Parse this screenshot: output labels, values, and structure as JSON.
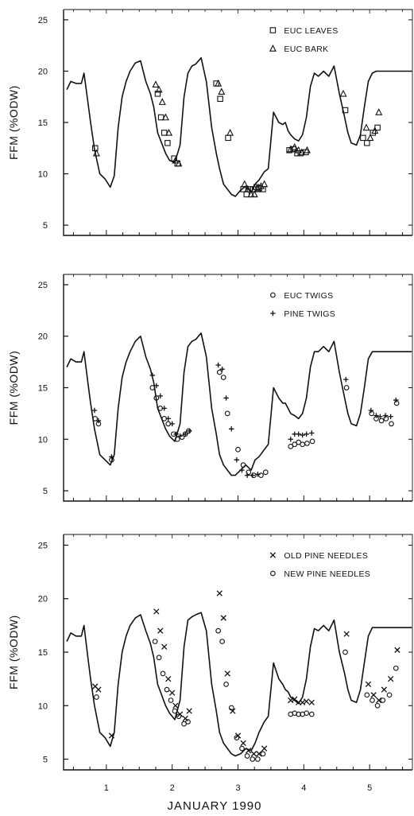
{
  "figure": {
    "xlabel": "JANUARY 1990"
  },
  "chart_data": [
    {
      "type": "line",
      "ylabel": "FFM (%ODW)",
      "ylim": [
        4,
        26
      ],
      "yticks": [
        5,
        10,
        15,
        20,
        25
      ],
      "xlim": [
        0.35,
        5.65
      ],
      "xticks": [
        1,
        2,
        3,
        4,
        5
      ],
      "xtick_labels": [],
      "legend_position": "top-right",
      "line": {
        "x": [
          0.4,
          0.46,
          0.54,
          0.62,
          0.66,
          0.72,
          0.76,
          0.82,
          0.9,
          0.98,
          1.06,
          1.12,
          1.18,
          1.24,
          1.3,
          1.36,
          1.44,
          1.52,
          1.6,
          1.67,
          1.72,
          1.78,
          1.84,
          1.9,
          1.96,
          2.04,
          2.12,
          2.18,
          2.24,
          2.3,
          2.36,
          2.44,
          2.52,
          2.6,
          2.67,
          2.72,
          2.78,
          2.84,
          2.9,
          2.96,
          3.04,
          3.12,
          3.2,
          3.26,
          3.32,
          3.4,
          3.46,
          3.54,
          3.62,
          3.68,
          3.72,
          3.76,
          3.8,
          3.86,
          3.92,
          3.98,
          4.04,
          4.1,
          4.16,
          4.22,
          4.3,
          4.38,
          4.46,
          4.54,
          4.62,
          4.67,
          4.72,
          4.8,
          4.86,
          4.92,
          4.98,
          5.04,
          5.1,
          5.16,
          5.2,
          5.24,
          5.3,
          5.36,
          5.42,
          5.5,
          5.58,
          5.64
        ],
        "y": [
          18.2,
          19,
          18.8,
          18.8,
          19.8,
          17,
          15,
          12.4,
          10,
          9.5,
          8.7,
          9.8,
          14.5,
          17.5,
          19,
          20,
          20.8,
          21,
          19,
          17.8,
          16.5,
          14,
          13,
          12,
          11.3,
          11.1,
          12.8,
          17.5,
          19.8,
          20.5,
          20.7,
          21.3,
          19,
          14.5,
          12,
          10.5,
          9,
          8.5,
          8,
          7.8,
          8.4,
          8.8,
          8.2,
          9,
          9.4,
          10.2,
          10.5,
          16,
          15,
          14.8,
          15,
          14.2,
          13.8,
          13.4,
          13.2,
          13.8,
          15.5,
          18.5,
          19.8,
          19.5,
          20,
          19.5,
          20.5,
          17.8,
          15.5,
          14,
          13,
          12.8,
          13.8,
          16.5,
          19,
          19.8,
          20,
          20,
          20,
          20,
          20,
          20,
          20,
          20,
          20,
          20
        ]
      },
      "series": [
        {
          "name": "EUC LEAVES",
          "marker": "square",
          "x": [
            0.83,
            1.78,
            1.83,
            1.88,
            1.93,
            2.03,
            2.08,
            2.67,
            2.73,
            2.85,
            3.08,
            3.13,
            3.18,
            3.23,
            3.28,
            3.32,
            3.38,
            3.78,
            3.84,
            3.9,
            3.95,
            4.03,
            4.63,
            4.9,
            4.96,
            5.05,
            5.12
          ],
          "y": [
            12.5,
            17.8,
            15.5,
            14,
            13,
            11.5,
            11,
            18.8,
            17.3,
            13.5,
            8.5,
            8,
            8.5,
            8.5,
            8.7,
            8.6,
            8.5,
            12.3,
            12.4,
            12,
            12,
            12.1,
            16.2,
            13.5,
            13,
            14,
            14.5
          ]
        },
        {
          "name": "EUC BARK",
          "marker": "triangle",
          "x": [
            0.85,
            1.75,
            1.8,
            1.85,
            1.9,
            1.95,
            2.05,
            2.1,
            2.7,
            2.75,
            2.88,
            3.1,
            3.15,
            3.2,
            3.25,
            3.3,
            3.35,
            3.4,
            3.8,
            3.86,
            3.92,
            3.97,
            4.05,
            4.6,
            4.95,
            5.01,
            5.08,
            5.14
          ],
          "y": [
            12,
            18.7,
            18.2,
            17,
            15.5,
            14,
            11.3,
            11,
            18.8,
            18,
            14,
            9,
            8.5,
            8,
            8,
            8.5,
            8.8,
            9,
            12.4,
            12.6,
            12.3,
            12.1,
            12.3,
            17.8,
            14.5,
            13.5,
            14.2,
            16
          ]
        }
      ]
    },
    {
      "type": "line",
      "ylabel": "FFM (%ODW)",
      "ylim": [
        4,
        26
      ],
      "yticks": [
        5,
        10,
        15,
        20,
        25
      ],
      "xlim": [
        0.35,
        5.65
      ],
      "xticks": [
        1,
        2,
        3,
        4,
        5
      ],
      "xtick_labels": [],
      "legend_position": "top-right",
      "line": {
        "x": [
          0.4,
          0.46,
          0.54,
          0.62,
          0.66,
          0.72,
          0.76,
          0.82,
          0.9,
          0.98,
          1.06,
          1.12,
          1.18,
          1.24,
          1.3,
          1.36,
          1.44,
          1.52,
          1.6,
          1.67,
          1.72,
          1.78,
          1.84,
          1.9,
          1.96,
          2.04,
          2.12,
          2.18,
          2.24,
          2.3,
          2.36,
          2.44,
          2.52,
          2.6,
          2.67,
          2.72,
          2.78,
          2.84,
          2.9,
          2.96,
          3.04,
          3.12,
          3.2,
          3.26,
          3.32,
          3.4,
          3.46,
          3.54,
          3.62,
          3.68,
          3.72,
          3.76,
          3.8,
          3.86,
          3.92,
          3.98,
          4.04,
          4.1,
          4.16,
          4.22,
          4.3,
          4.38,
          4.46,
          4.54,
          4.62,
          4.67,
          4.72,
          4.8,
          4.86,
          4.92,
          4.98,
          5.04,
          5.1,
          5.16,
          5.2,
          5.24,
          5.3,
          5.36,
          5.42,
          5.5,
          5.58,
          5.64
        ],
        "y": [
          17,
          17.8,
          17.5,
          17.5,
          18.5,
          15.5,
          13.5,
          11,
          8.5,
          8,
          7.5,
          8.5,
          13,
          16,
          17.5,
          18.5,
          19.5,
          20,
          18,
          16.8,
          15.5,
          13,
          12,
          11,
          10.3,
          9.8,
          11.5,
          16.5,
          19,
          19.5,
          19.7,
          20.3,
          18,
          13,
          10.5,
          8.5,
          7.5,
          7,
          6.5,
          6.5,
          7,
          7.5,
          7,
          8,
          8.3,
          9,
          9.5,
          15,
          14,
          13.5,
          13.5,
          13,
          12.5,
          12.3,
          12,
          12.5,
          14,
          17,
          18.5,
          18.5,
          19,
          18.5,
          19.5,
          16.5,
          14,
          12.5,
          11.5,
          11.3,
          12.5,
          15,
          17.8,
          18.5,
          18.5,
          18.5,
          18.5,
          18.5,
          18.5,
          18.5,
          18.5,
          18.5,
          18.5,
          18.5
        ]
      },
      "series": [
        {
          "name": "EUC TWIGS",
          "marker": "circle",
          "x": [
            0.83,
            0.88,
            1.08,
            1.7,
            1.76,
            1.82,
            1.88,
            1.94,
            2.02,
            2.08,
            2.15,
            2.2,
            2.25,
            2.72,
            2.78,
            2.84,
            3,
            3.08,
            3.16,
            3.24,
            3.35,
            3.42,
            3.8,
            3.86,
            3.92,
            3.98,
            4.05,
            4.13,
            4.65,
            5.03,
            5.1,
            5.18,
            5.25,
            5.33,
            5.41
          ],
          "y": [
            12,
            11.5,
            8,
            15,
            14,
            13,
            12,
            11.5,
            10.5,
            10,
            10.2,
            10.5,
            10.8,
            16.5,
            16,
            12.5,
            9,
            7.5,
            6.8,
            6.5,
            6.5,
            6.8,
            9.3,
            9.5,
            9.7,
            9.5,
            9.6,
            9.8,
            15,
            12.5,
            12,
            11.8,
            12,
            11.5,
            13.5
          ]
        },
        {
          "name": "PINE TWIGS",
          "marker": "plus",
          "x": [
            0.82,
            0.88,
            1.08,
            1.7,
            1.76,
            1.82,
            1.88,
            1.94,
            2,
            2.06,
            2.12,
            2.2,
            2.26,
            2.7,
            2.76,
            2.82,
            2.9,
            2.98,
            3.06,
            3.14,
            3.22,
            3.3,
            3.8,
            3.86,
            3.92,
            3.98,
            4.04,
            4.12,
            4.64,
            5.02,
            5.1,
            5.16,
            5.24,
            5.32,
            5.4
          ],
          "y": [
            12.8,
            11.8,
            8.3,
            16.2,
            15.2,
            14.2,
            13,
            12,
            11.5,
            10.5,
            10.3,
            10.5,
            10.8,
            17.2,
            16.8,
            14,
            11,
            8,
            7,
            6.5,
            6.5,
            6.6,
            10,
            10.5,
            10.5,
            10.4,
            10.5,
            10.6,
            15.8,
            12.8,
            12.3,
            12.2,
            12.3,
            12.2,
            13.8
          ]
        }
      ]
    },
    {
      "type": "line",
      "ylabel": "FFM (%ODW)",
      "ylim": [
        4,
        26
      ],
      "yticks": [
        5,
        10,
        15,
        20,
        25
      ],
      "xlim": [
        0.35,
        5.65
      ],
      "xticks": [
        1,
        2,
        3,
        4,
        5
      ],
      "xtick_labels": [
        "1",
        "2",
        "3",
        "4",
        "5"
      ],
      "legend_position": "top-right",
      "line": {
        "x": [
          0.4,
          0.46,
          0.54,
          0.62,
          0.66,
          0.72,
          0.76,
          0.82,
          0.9,
          0.98,
          1.06,
          1.12,
          1.18,
          1.24,
          1.3,
          1.36,
          1.44,
          1.52,
          1.6,
          1.67,
          1.72,
          1.78,
          1.84,
          1.9,
          1.96,
          2.04,
          2.12,
          2.18,
          2.24,
          2.3,
          2.36,
          2.44,
          2.52,
          2.6,
          2.67,
          2.72,
          2.78,
          2.84,
          2.9,
          2.96,
          3.04,
          3.12,
          3.2,
          3.26,
          3.32,
          3.4,
          3.46,
          3.54,
          3.62,
          3.68,
          3.72,
          3.76,
          3.8,
          3.86,
          3.92,
          3.98,
          4.04,
          4.1,
          4.16,
          4.22,
          4.3,
          4.38,
          4.46,
          4.54,
          4.62,
          4.67,
          4.72,
          4.8,
          4.86,
          4.92,
          4.98,
          5.04,
          5.1,
          5.16,
          5.2,
          5.24,
          5.3,
          5.36,
          5.42,
          5.5,
          5.58,
          5.64
        ],
        "y": [
          16,
          16.8,
          16.5,
          16.5,
          17.5,
          14.5,
          12.5,
          10,
          7.5,
          7,
          6.2,
          7.5,
          12,
          15,
          16.5,
          17.5,
          18.2,
          18.5,
          17,
          15.8,
          14.5,
          12,
          11,
          10,
          9.3,
          8.7,
          10.5,
          15.5,
          18,
          18.3,
          18.5,
          18.7,
          17,
          12,
          9.5,
          7.5,
          6.5,
          6,
          5.5,
          5.3,
          5.5,
          6,
          5.8,
          6.5,
          7.5,
          8.5,
          9,
          14,
          12.5,
          12,
          11.5,
          11.3,
          10.8,
          10.5,
          10.2,
          10.8,
          12.5,
          15.5,
          17.2,
          17,
          17.5,
          17,
          18,
          15,
          13,
          11.5,
          10.5,
          10.3,
          11.5,
          14,
          16.5,
          17.3,
          17.3,
          17.3,
          17.3,
          17.3,
          17.3,
          17.3,
          17.3,
          17.3,
          17.3,
          17.3
        ]
      },
      "series": [
        {
          "name": "OLD PINE NEEDLES",
          "marker": "x",
          "x": [
            0.83,
            0.88,
            1.08,
            1.76,
            1.82,
            1.88,
            1.94,
            2,
            2.05,
            2.12,
            2.2,
            2.26,
            2.72,
            2.78,
            2.84,
            2.92,
            3,
            3.08,
            3.16,
            3.24,
            3.32,
            3.4,
            3.8,
            3.86,
            3.92,
            3.98,
            4.04,
            4.12,
            4.65,
            4.98,
            5.06,
            5.14,
            5.22,
            5.32,
            5.42
          ],
          "y": [
            11.8,
            11.5,
            7.2,
            18.8,
            17,
            15.5,
            12.5,
            11.2,
            10,
            9.2,
            8.8,
            9.5,
            20.5,
            18.2,
            13,
            9.5,
            7.2,
            6.5,
            5.8,
            5.5,
            5.5,
            6,
            10.5,
            10.6,
            10.3,
            10.3,
            10.4,
            10.3,
            16.7,
            12,
            11,
            10.5,
            11.5,
            12.5,
            15.2
          ]
        },
        {
          "name": "NEW PINE NEEDLES",
          "marker": "circle",
          "x": [
            0.85,
            1.74,
            1.8,
            1.86,
            1.92,
            1.98,
            2.04,
            2.1,
            2.18,
            2.24,
            2.7,
            2.76,
            2.82,
            2.9,
            2.98,
            3.06,
            3.14,
            3.22,
            3.3,
            3.38,
            3.8,
            3.86,
            3.92,
            3.98,
            4.04,
            4.12,
            4.63,
            4.96,
            5.04,
            5.12,
            5.2,
            5.3,
            5.4
          ],
          "y": [
            10.8,
            16,
            14.5,
            13,
            11.5,
            10.5,
            9.5,
            9,
            8.3,
            8.5,
            17,
            16,
            12,
            9.8,
            7,
            6,
            5.3,
            5,
            5,
            5.5,
            9.2,
            9.3,
            9.2,
            9.2,
            9.3,
            9.2,
            15,
            11,
            10.5,
            10,
            10.5,
            11,
            13.5
          ]
        }
      ]
    }
  ]
}
